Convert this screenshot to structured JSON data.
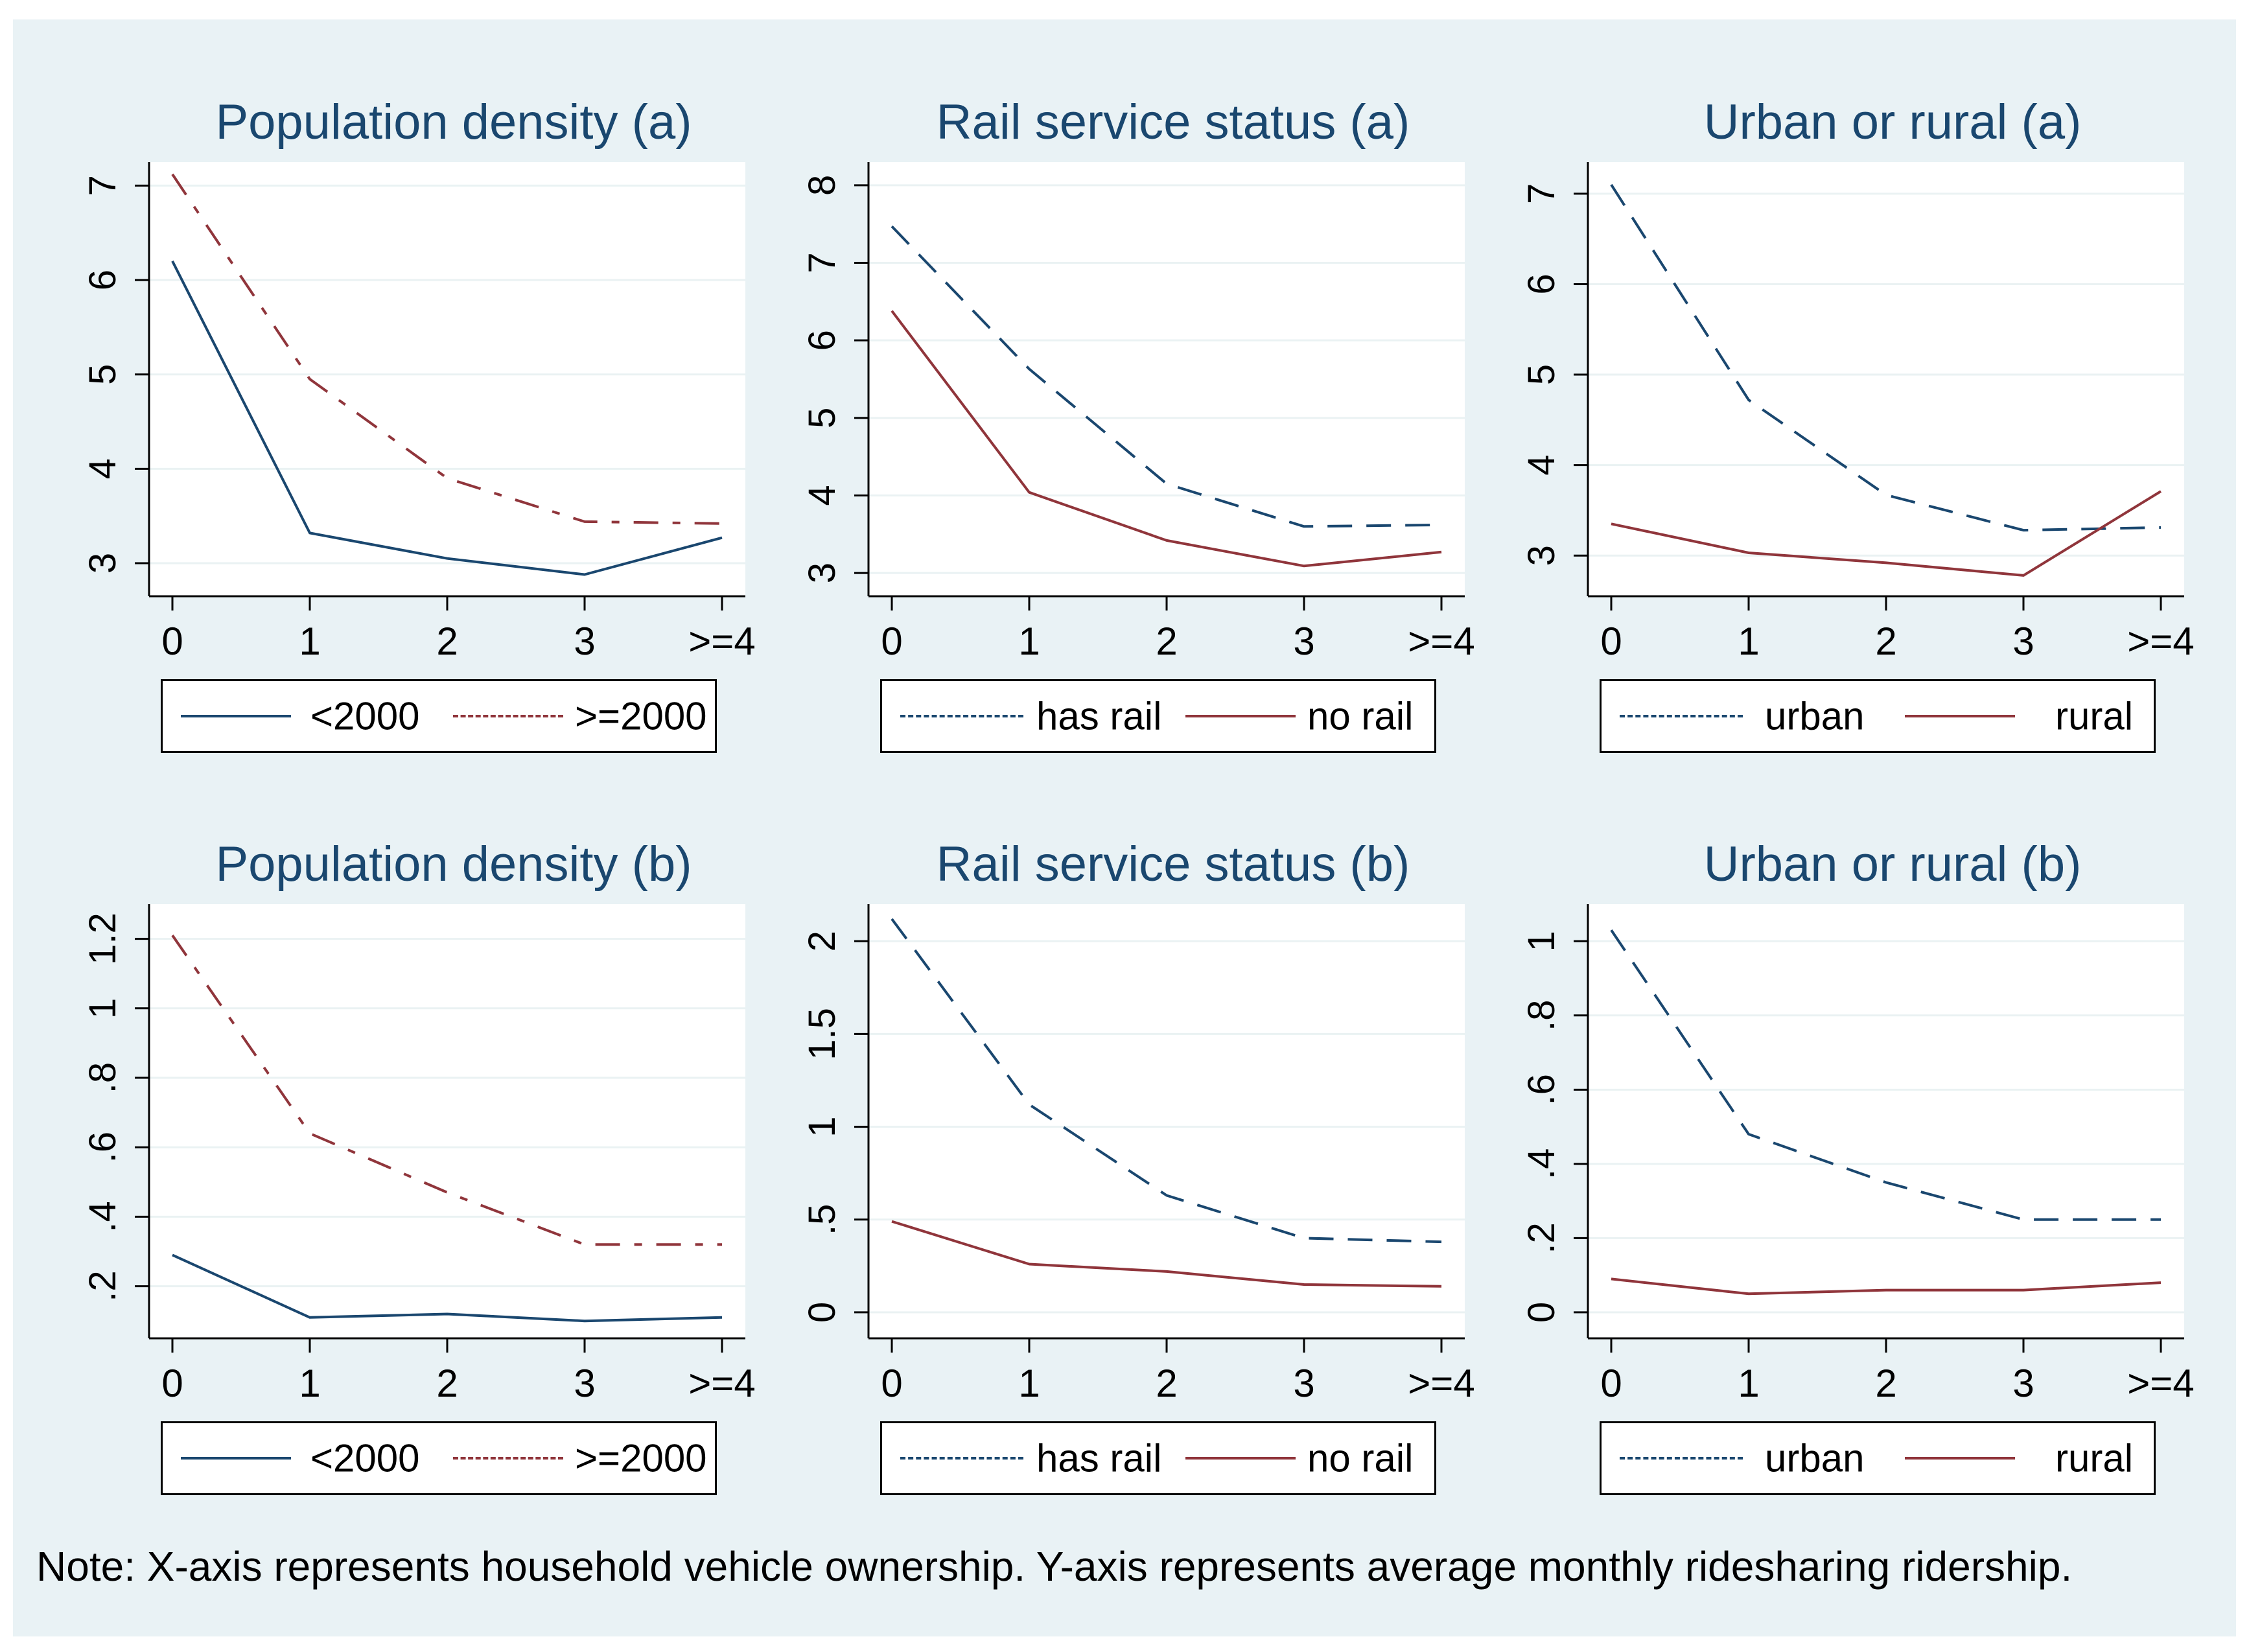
{
  "note": "Note: X-axis represents household vehicle ownership. Y-axis represents average monthly ridesharing ridership.",
  "colors": {
    "background": "#e9f2f5",
    "navy": "#1a476f",
    "maroon": "#90353b"
  },
  "chart_data": [
    {
      "type": "line",
      "title": "Population density (a)",
      "categories": [
        "0",
        "1",
        "2",
        "3",
        ">=4"
      ],
      "ylim": [
        2.65,
        7.25
      ],
      "yticks": [
        3,
        4,
        5,
        6,
        7
      ],
      "ytick_labels": [
        "3",
        "4",
        "5",
        "6",
        "7"
      ],
      "series": [
        {
          "name": "<2000",
          "values": [
            6.2,
            3.32,
            3.05,
            2.88,
            3.27
          ],
          "color": "#1a476f",
          "style": "solid"
        },
        {
          "name": ">=2000",
          "values": [
            7.12,
            4.95,
            3.9,
            3.44,
            3.42
          ],
          "color": "#90353b",
          "style": "dashdot"
        }
      ]
    },
    {
      "type": "line",
      "title": "Rail service status (a)",
      "categories": [
        "0",
        "1",
        "2",
        "3",
        ">=4"
      ],
      "ylim": [
        2.7,
        8.3
      ],
      "yticks": [
        3,
        4,
        5,
        6,
        7,
        8
      ],
      "ytick_labels": [
        "3",
        "4",
        "5",
        "6",
        "7",
        "8"
      ],
      "series": [
        {
          "name": "has rail",
          "values": [
            7.47,
            5.63,
            4.15,
            3.6,
            3.62
          ],
          "color": "#1a476f",
          "style": "dash"
        },
        {
          "name": "no rail",
          "values": [
            6.38,
            4.04,
            3.42,
            3.09,
            3.27
          ],
          "color": "#90353b",
          "style": "solid"
        }
      ]
    },
    {
      "type": "line",
      "title": "Urban or rural (a)",
      "categories": [
        "0",
        "1",
        "2",
        "3",
        ">=4"
      ],
      "ylim": [
        2.55,
        7.35
      ],
      "yticks": [
        3,
        4,
        5,
        6,
        7
      ],
      "ytick_labels": [
        "3",
        "4",
        "5",
        "6",
        "7"
      ],
      "series": [
        {
          "name": "urban",
          "values": [
            7.1,
            4.72,
            3.67,
            3.28,
            3.31
          ],
          "color": "#1a476f",
          "style": "dash"
        },
        {
          "name": "rural",
          "values": [
            3.35,
            3.03,
            2.92,
            2.78,
            3.71
          ],
          "color": "#90353b",
          "style": "solid"
        }
      ]
    },
    {
      "type": "line",
      "title": "Population density (b)",
      "categories": [
        "0",
        "1",
        "2",
        "3",
        ">=4"
      ],
      "ylim": [
        0.05,
        1.3
      ],
      "yticks": [
        0.2,
        0.4,
        0.6,
        0.8,
        1,
        1.2
      ],
      "ytick_labels": [
        ".2",
        ".4",
        ".6",
        ".8",
        "1",
        "1.2"
      ],
      "series": [
        {
          "name": "<2000",
          "values": [
            0.29,
            0.11,
            0.12,
            0.1,
            0.11
          ],
          "color": "#1a476f",
          "style": "solid"
        },
        {
          "name": ">=2000",
          "values": [
            1.21,
            0.64,
            0.47,
            0.32,
            0.32
          ],
          "color": "#90353b",
          "style": "dashdot"
        }
      ]
    },
    {
      "type": "line",
      "title": "Rail service status (b)",
      "categories": [
        "0",
        "1",
        "2",
        "3",
        ">=4"
      ],
      "ylim": [
        -0.14,
        2.2
      ],
      "yticks": [
        0,
        0.5,
        1,
        1.5,
        2
      ],
      "ytick_labels": [
        "0",
        ".5",
        "1",
        "1.5",
        "2"
      ],
      "series": [
        {
          "name": "has rail",
          "values": [
            2.12,
            1.12,
            0.63,
            0.4,
            0.38
          ],
          "color": "#1a476f",
          "style": "dash"
        },
        {
          "name": "no rail",
          "values": [
            0.49,
            0.26,
            0.22,
            0.15,
            0.14
          ],
          "color": "#90353b",
          "style": "solid"
        }
      ]
    },
    {
      "type": "line",
      "title": "Urban or rural (b)",
      "categories": [
        "0",
        "1",
        "2",
        "3",
        ">=4"
      ],
      "ylim": [
        -0.07,
        1.1
      ],
      "yticks": [
        0,
        0.2,
        0.4,
        0.6,
        0.8,
        1
      ],
      "ytick_labels": [
        "0",
        ".2",
        ".4",
        ".6",
        ".8",
        "1"
      ],
      "series": [
        {
          "name": "urban",
          "values": [
            1.03,
            0.48,
            0.35,
            0.25,
            0.25
          ],
          "color": "#1a476f",
          "style": "dash"
        },
        {
          "name": "rural",
          "values": [
            0.09,
            0.05,
            0.06,
            0.06,
            0.08
          ],
          "color": "#90353b",
          "style": "solid"
        }
      ]
    }
  ]
}
